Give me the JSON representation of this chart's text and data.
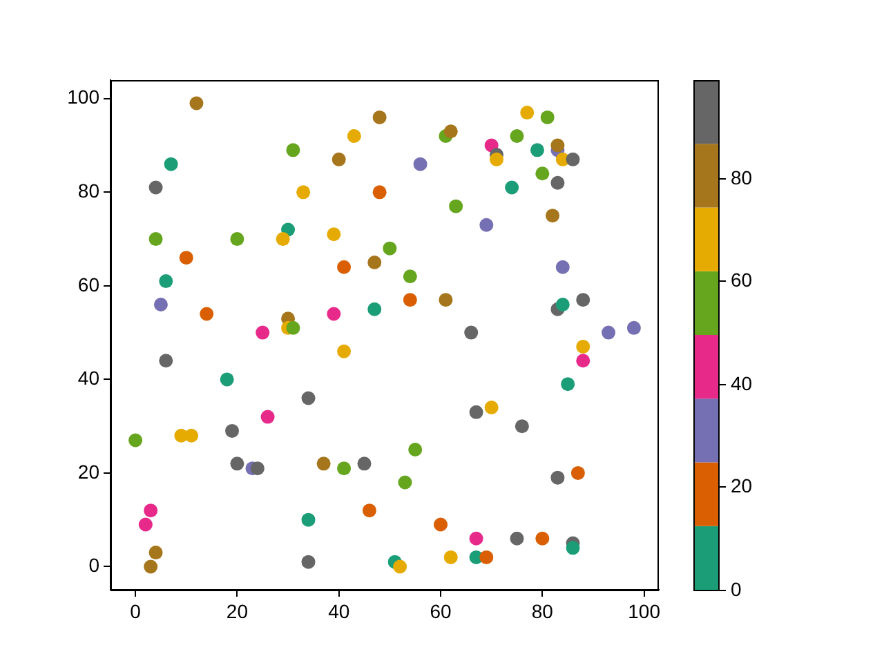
{
  "chart_data": {
    "type": "scatter",
    "x": [
      12,
      48,
      43,
      31,
      40,
      7,
      4,
      33,
      48,
      30,
      4,
      20,
      29,
      39,
      50,
      10,
      41,
      47,
      6,
      5,
      14,
      47,
      39,
      30,
      30,
      31,
      25,
      77,
      81,
      61,
      62,
      75,
      70,
      71,
      71,
      79,
      83,
      83,
      84,
      86,
      56,
      80,
      74,
      83,
      63,
      82,
      69,
      54,
      84,
      54,
      61,
      88,
      83,
      84,
      66,
      93,
      98,
      88,
      88,
      85,
      67,
      70,
      76,
      55,
      53,
      83,
      87,
      46,
      60,
      67,
      75,
      80,
      86,
      86,
      62,
      67,
      69,
      51,
      52,
      41,
      6,
      18,
      34,
      26,
      19,
      0,
      9,
      11,
      20,
      23,
      24,
      37,
      41,
      45,
      3,
      2,
      34,
      4,
      3,
      34
    ],
    "values": [
      99,
      96,
      92,
      89,
      87,
      86,
      81,
      80,
      80,
      72,
      70,
      70,
      70,
      71,
      68,
      66,
      64,
      65,
      61,
      56,
      54,
      55,
      54,
      53,
      51,
      51,
      50,
      97,
      96,
      92,
      93,
      92,
      90,
      88,
      87,
      89,
      89,
      90,
      87,
      87,
      86,
      84,
      81,
      82,
      77,
      75,
      73,
      62,
      64,
      57,
      57,
      57,
      55,
      56,
      50,
      50,
      51,
      47,
      44,
      39,
      33,
      34,
      30,
      25,
      18,
      19,
      20,
      12,
      9,
      6,
      6,
      6,
      5,
      4,
      2,
      2,
      2,
      1,
      0,
      46,
      44,
      40,
      36,
      32,
      29,
      27,
      28,
      28,
      22,
      21,
      21,
      22,
      21,
      22,
      12,
      9,
      10,
      3,
      0,
      1
    ],
    "colors": [
      "#a6761d",
      "#a6761d",
      "#e6ab02",
      "#66a61e",
      "#a6761d",
      "#1b9e77",
      "#666666",
      "#e6ab02",
      "#d95f02",
      "#1b9e77",
      "#66a61e",
      "#66a61e",
      "#e6ab02",
      "#e6ab02",
      "#66a61e",
      "#d95f02",
      "#d95f02",
      "#a6761d",
      "#1b9e77",
      "#7570b3",
      "#d95f02",
      "#1b9e77",
      "#e7298a",
      "#a6761d",
      "#e6ab02",
      "#66a61e",
      "#e7298a",
      "#e6ab02",
      "#66a61e",
      "#66a61e",
      "#a6761d",
      "#66a61e",
      "#e7298a",
      "#666666",
      "#e6ab02",
      "#1b9e77",
      "#7570b3",
      "#a6761d",
      "#e6ab02",
      "#666666",
      "#7570b3",
      "#66a61e",
      "#1b9e77",
      "#666666",
      "#66a61e",
      "#a6761d",
      "#7570b3",
      "#66a61e",
      "#7570b3",
      "#d95f02",
      "#a6761d",
      "#666666",
      "#666666",
      "#1b9e77",
      "#666666",
      "#7570b3",
      "#7570b3",
      "#e6ab02",
      "#e7298a",
      "#1b9e77",
      "#666666",
      "#e6ab02",
      "#666666",
      "#66a61e",
      "#66a61e",
      "#666666",
      "#d95f02",
      "#d95f02",
      "#d95f02",
      "#e7298a",
      "#666666",
      "#d95f02",
      "#666666",
      "#1b9e77",
      "#e6ab02",
      "#1b9e77",
      "#d95f02",
      "#1b9e77",
      "#e6ab02",
      "#e6ab02",
      "#666666",
      "#1b9e77",
      "#666666",
      "#e7298a",
      "#666666",
      "#66a61e",
      "#e6ab02",
      "#e6ab02",
      "#666666",
      "#7570b3",
      "#666666",
      "#a6761d",
      "#66a61e",
      "#666666",
      "#e7298a",
      "#e7298a",
      "#1b9e77",
      "#a6761d",
      "#a6761d",
      "#666666"
    ],
    "clim": [
      0,
      99
    ],
    "cticks": [
      0,
      20,
      40,
      60,
      80
    ],
    "xlim": [
      -4.9,
      102.9
    ],
    "ylim": [
      -4.95,
      103.95
    ],
    "xticks": [
      0,
      20,
      40,
      60,
      80,
      100
    ],
    "yticks": [
      0,
      20,
      40,
      60,
      80,
      100
    ],
    "marker": "circle"
  }
}
